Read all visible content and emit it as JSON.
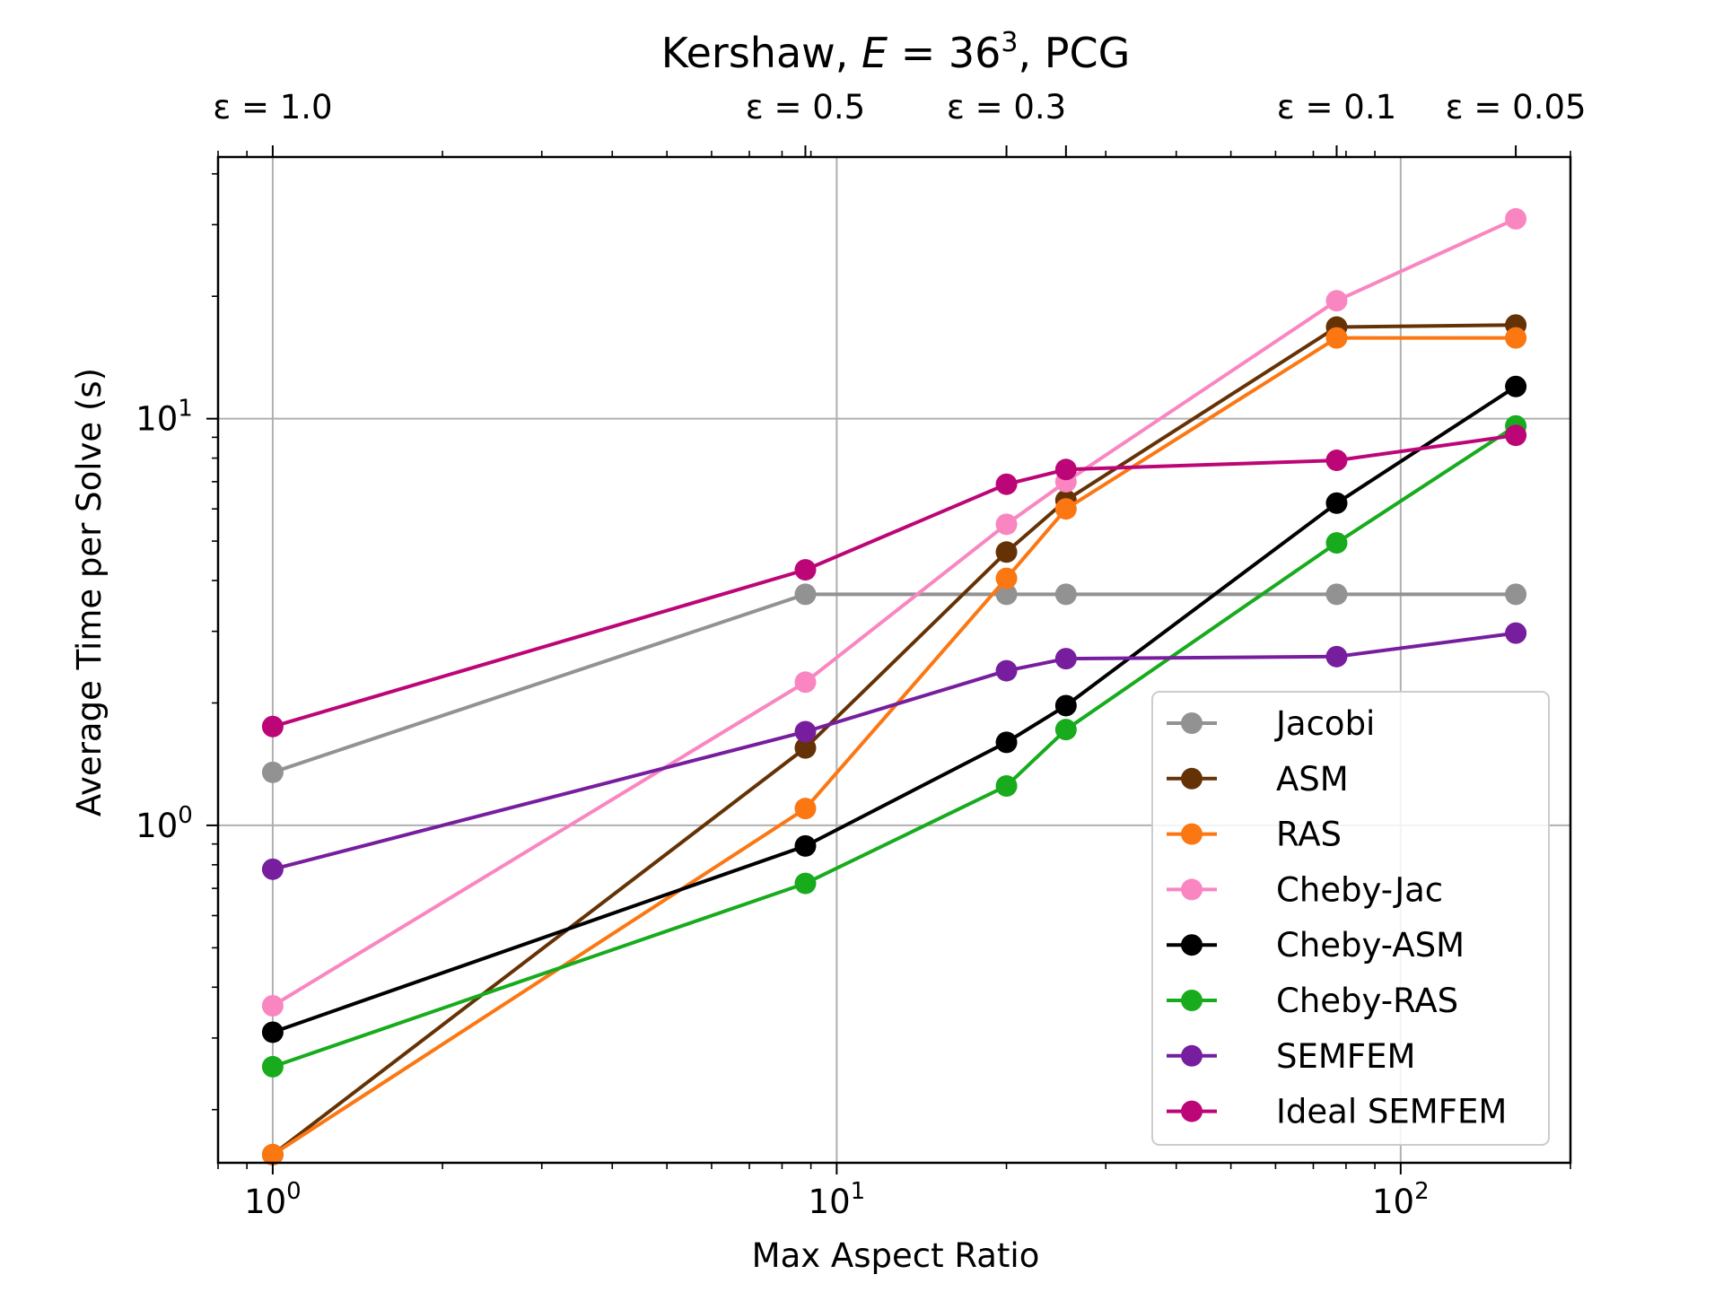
{
  "chart_data": {
    "type": "line",
    "title": "Kershaw, E = 36³, PCG",
    "title_parts": {
      "prefix": "Kershaw, ",
      "var": "E",
      "eq": " = 36",
      "sup": "3",
      "suffix": ", PCG"
    },
    "xlabel": "Max Aspect Ratio",
    "ylabel": "Average Time per Solve (s)",
    "xscale": "log",
    "yscale": "log",
    "xlim": [
      0.8,
      200
    ],
    "ylim": [
      0.148,
      44
    ],
    "grid": true,
    "legend_position": "bottom-right",
    "x_major_ticks": [
      {
        "value": 1,
        "base": "10",
        "exp": "0"
      },
      {
        "value": 10,
        "base": "10",
        "exp": "1"
      },
      {
        "value": 100,
        "base": "10",
        "exp": "2"
      }
    ],
    "y_major_ticks": [
      {
        "value": 1,
        "base": "10",
        "exp": "0"
      },
      {
        "value": 10,
        "base": "10",
        "exp": "1"
      }
    ],
    "top_axis_ticks": [
      {
        "x": 1,
        "label": "ε = 1.0"
      },
      {
        "x": 8.8,
        "label": "ε = 0.5"
      },
      {
        "x": 20,
        "label": "ε = 0.3"
      },
      {
        "x": 77,
        "label": "ε = 0.1"
      },
      {
        "x": 160,
        "label": "ε = 0.05"
      }
    ],
    "top_minor_ticks": [
      25.5
    ],
    "x": [
      1,
      8.8,
      20,
      25.5,
      77,
      160
    ],
    "series": [
      {
        "name": "Jacobi",
        "color": "#929292",
        "x": [
          1,
          8.8,
          20,
          25.5,
          77,
          160
        ],
        "values": [
          1.35,
          3.7,
          3.7,
          3.7,
          3.7,
          3.7
        ]
      },
      {
        "name": "ASM",
        "color": "#653205",
        "x": [
          1,
          8.8,
          20,
          25.5,
          77,
          160
        ],
        "values": [
          0.155,
          1.55,
          4.7,
          6.3,
          16.8,
          17.0
        ]
      },
      {
        "name": "RAS",
        "color": "#fb7712",
        "x": [
          1,
          8.8,
          20,
          25.5,
          77,
          160
        ],
        "values": [
          0.155,
          1.1,
          4.05,
          6.0,
          15.8,
          15.8
        ]
      },
      {
        "name": "Cheby-Jac",
        "color": "#f986c1",
        "x": [
          1,
          8.8,
          20,
          25.5,
          77,
          160
        ],
        "values": [
          0.36,
          2.25,
          5.5,
          7.0,
          19.5,
          31.0
        ]
      },
      {
        "name": "Cheby-ASM",
        "color": "#000000",
        "x": [
          1,
          8.8,
          20,
          25.5,
          77,
          160
        ],
        "values": [
          0.31,
          0.89,
          1.6,
          1.97,
          6.2,
          12.0
        ]
      },
      {
        "name": "Cheby-RAS",
        "color": "#17ab1d",
        "x": [
          1,
          8.8,
          20,
          25.5,
          77,
          160
        ],
        "values": [
          0.255,
          0.72,
          1.25,
          1.72,
          4.95,
          9.6
        ]
      },
      {
        "name": "SEMFEM",
        "color": "#771e9f",
        "x": [
          1,
          8.8,
          20,
          25.5,
          77,
          160
        ],
        "values": [
          0.78,
          1.7,
          2.4,
          2.57,
          2.6,
          2.97
        ]
      },
      {
        "name": "Ideal SEMFEM",
        "color": "#bc0677",
        "x": [
          1,
          8.8,
          20,
          25.5,
          77,
          160
        ],
        "values": [
          1.75,
          4.25,
          6.9,
          7.5,
          7.9,
          9.1
        ]
      }
    ]
  }
}
